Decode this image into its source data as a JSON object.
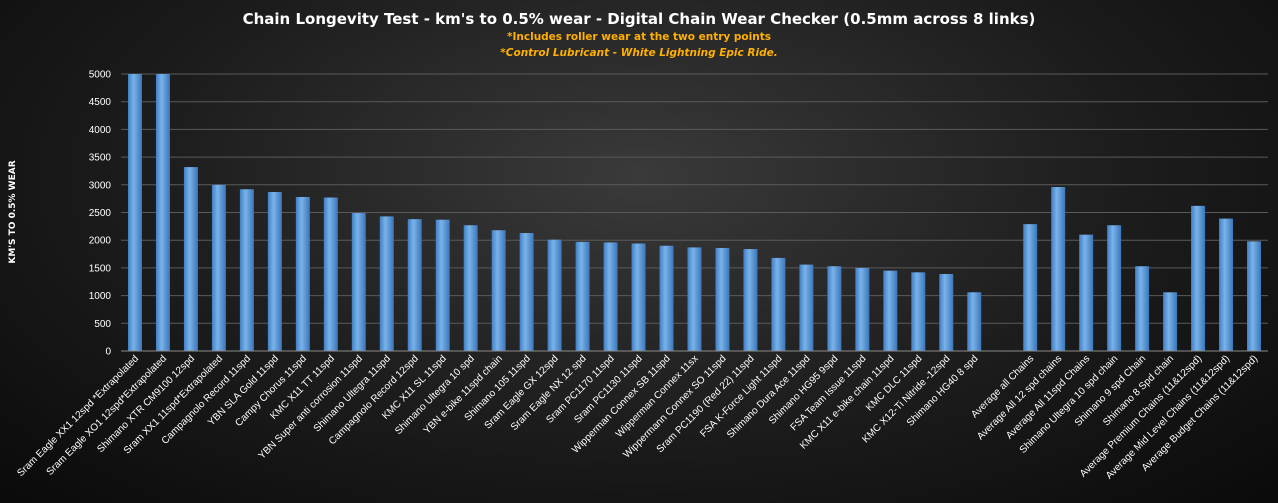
{
  "chart_data": {
    "type": "bar",
    "title": "Chain Longevity Test - km's to 0.5% wear - Digital Chain Wear Checker (0.5mm across 8 links)",
    "subtitle": "*Includes roller wear at the two entry points",
    "subtitle2": "*Control Lubricant - White Lightning Epic Ride.",
    "xlabel": "",
    "ylabel": "KM'S TO 0.5% WEAR",
    "ylim": [
      0,
      5000
    ],
    "yticks": [
      0,
      500,
      1000,
      1500,
      2000,
      2500,
      3000,
      3500,
      4000,
      4500,
      5000
    ],
    "grid": true,
    "legend": "none",
    "bar_color": "#5b9bd5",
    "categories": [
      "Sram Eagle XX1 12spd *Extrapolated",
      "Sram Eagle XO1 12spd*Extrapolated",
      "Shimano XTR CM9100 12spd",
      "Sram XX1 11spd*Extrapolated",
      "Campagnolo Record 11spd",
      "YBN SLA Gold 11spd",
      "Campy Chorus 11spd",
      "KMC X11 TT 11spd",
      "YBN Super anti corrosion 11spd",
      "Shimano Ultegra 11spd",
      "Campagnolo Record 12spd",
      "KMC X11 SL 11spd",
      "Shimano Ultegra 10 spd",
      "YBN e-bike 11spd chain",
      "Shimano 105 11spd",
      "Sram Eagle GX 12spd",
      "Sram Eagle NX 12 spd",
      "Sram PC1170 11spd",
      "Sram PC1130 11spd",
      "Wipperman Connex SB 11spd",
      "Wipperman Connex 11sx",
      "Wippermann Connex SO 11spd",
      "Sram PC1190 (Red 22) 11spd",
      "FSA K-Force Light 11spd",
      "Shimano Dura Ace 11spd",
      "Shimano HG95 9spd",
      "FSA Team Issue 11spd",
      "KMC X11 e-bike chain 11spd",
      "KMC DLC 11spd",
      "KMC X12-Ti Nitride -12spd",
      "Shimano HG40 8 spd",
      "",
      "Average all Chains",
      "Average All 12 spd chains",
      "Average All 11spd Chains",
      "Shimano Ultegra 10 spd chain",
      "Shimano 9 spd Chain",
      "Shimano 8 Spd chain",
      "Average Premium Chains (11&12spd)",
      "Average Mid Level Chains (11&12spd)",
      "Average Budget Chains (11&12spd)"
    ],
    "values": [
      5000,
      5000,
      3320,
      3000,
      2920,
      2870,
      2780,
      2770,
      2490,
      2430,
      2380,
      2370,
      2270,
      2180,
      2130,
      2010,
      1970,
      1960,
      1940,
      1900,
      1870,
      1860,
      1840,
      1680,
      1560,
      1530,
      1500,
      1450,
      1420,
      1390,
      1060,
      null,
      2290,
      2960,
      2100,
      2270,
      1530,
      1060,
      2620,
      2390,
      1980
    ]
  }
}
